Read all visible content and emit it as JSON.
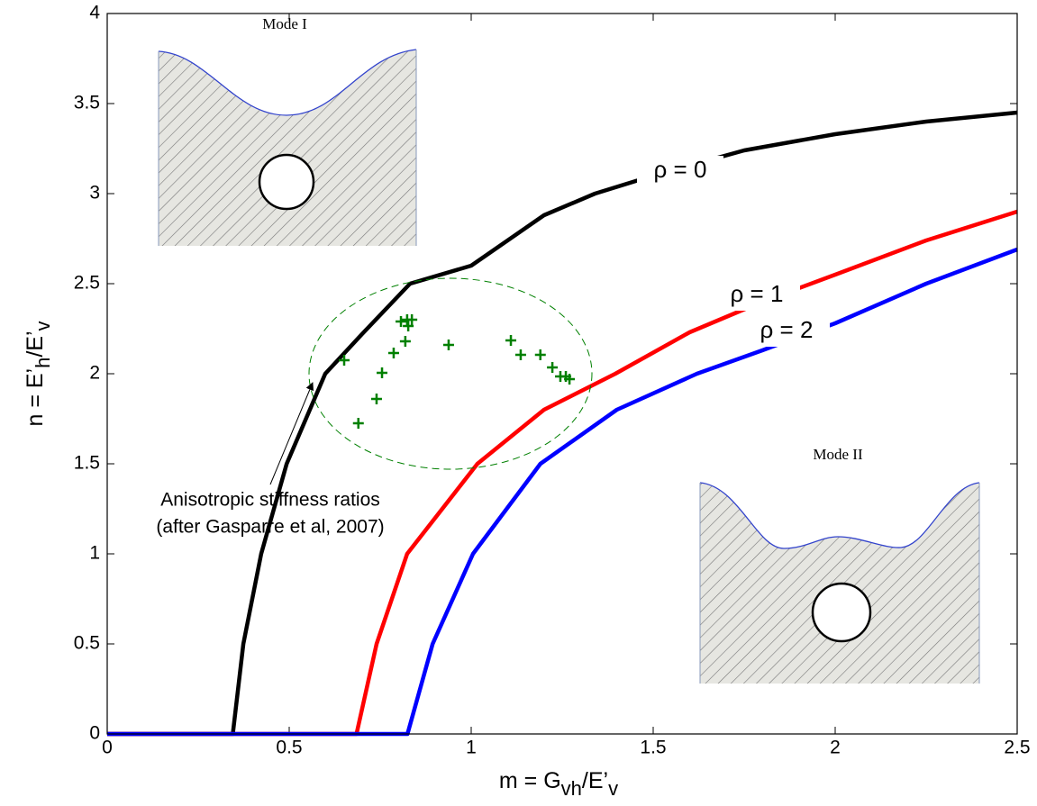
{
  "chart_data": {
    "type": "line",
    "xlabel": [
      "m = G",
      "vh",
      "/E’",
      "v"
    ],
    "ylabel": [
      "n = E’",
      "h",
      "/E’",
      "v"
    ],
    "xlim": [
      0,
      2.5
    ],
    "xticks": [
      0,
      0.5,
      1,
      1.5,
      2,
      2.5
    ],
    "ylim": [
      0,
      4
    ],
    "yticks": [
      0,
      0.5,
      1,
      1.5,
      2,
      2.5,
      3,
      3.5,
      4
    ],
    "series": [
      {
        "name": "ρ = 0",
        "color": "#000000",
        "x": [
          0,
          0.345,
          0.374,
          0.423,
          0.493,
          0.599,
          0.7,
          0.832,
          1.0,
          1.2,
          1.34,
          1.5,
          1.75,
          2.0,
          2.25,
          2.5
        ],
        "values": [
          0,
          0,
          0.5,
          1,
          1.5,
          2,
          2.22,
          2.5,
          2.6,
          2.88,
          3.0,
          3.1,
          3.24,
          3.33,
          3.4,
          3.45
        ]
      },
      {
        "name": "ρ = 1",
        "color": "#ff0000",
        "x": [
          0,
          0.685,
          0.74,
          0.824,
          1.017,
          1.2,
          1.396,
          1.6,
          1.8,
          2.0,
          2.25,
          2.5
        ],
        "values": [
          0,
          0,
          0.5,
          1,
          1.5,
          1.8,
          2.0,
          2.23,
          2.4,
          2.55,
          2.74,
          2.9
        ]
      },
      {
        "name": "ρ = 2",
        "color": "#0000ff",
        "x": [
          0,
          0.825,
          0.894,
          1.005,
          1.19,
          1.4,
          1.62,
          1.8,
          2.0,
          2.25,
          2.5
        ],
        "values": [
          0,
          0,
          0.5,
          1,
          1.5,
          1.8,
          2.0,
          2.13,
          2.28,
          2.5,
          2.69
        ]
      }
    ],
    "points": {
      "color": "#008000",
      "x": [
        0.651,
        0.69,
        0.74,
        0.755,
        0.787,
        0.819,
        0.807,
        0.824,
        0.837,
        0.827,
        0.938,
        1.109,
        1.136,
        1.19,
        1.223,
        1.245,
        1.26,
        1.27
      ],
      "values": [
        2.075,
        1.725,
        1.86,
        2.005,
        2.115,
        2.18,
        2.29,
        2.3,
        2.3,
        2.265,
        2.16,
        2.185,
        2.105,
        2.105,
        2.035,
        1.985,
        1.985,
        1.97
      ]
    },
    "annotations": [
      "Anisotropic stiffness ratios",
      "(after Gasparre et al, 2007)"
    ],
    "insets": [
      "Mode I",
      "Mode II"
    ]
  }
}
